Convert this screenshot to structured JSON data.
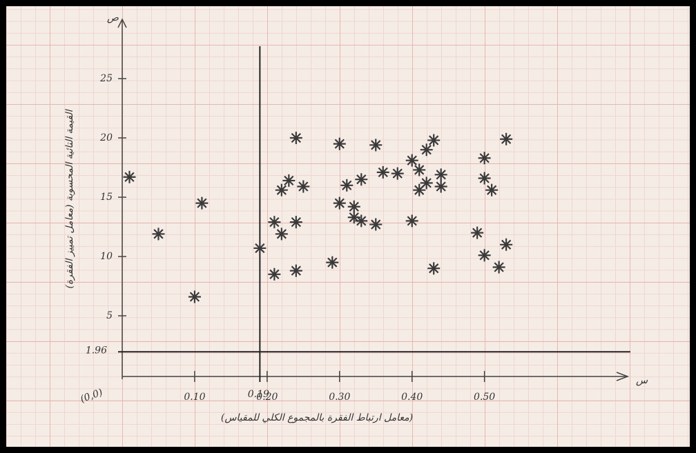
{
  "chart_data": {
    "type": "scatter",
    "x_label": "(معامل ارتباط الفقرة بالمجموع الكلي للمقياس)",
    "y_label": "القيمة التائية المحسوبة (معامل تمييز الفقرة)",
    "x_axis_letter": "س",
    "y_axis_letter": "ص",
    "origin_label": "(0,0)",
    "x": [
      0.01,
      0.05,
      0.11,
      0.1,
      0.19,
      0.21,
      0.21,
      0.22,
      0.22,
      0.23,
      0.24,
      0.25,
      0.24,
      0.24,
      0.29,
      0.3,
      0.31,
      0.3,
      0.33,
      0.32,
      0.32,
      0.33,
      0.35,
      0.35,
      0.36,
      0.38,
      0.4,
      0.4,
      0.41,
      0.41,
      0.42,
      0.42,
      0.43,
      0.44,
      0.44,
      0.43,
      0.49,
      0.5,
      0.5,
      0.51,
      0.5,
      0.52,
      0.53,
      0.53
    ],
    "values": [
      16.7,
      11.9,
      14.5,
      6.6,
      10.7,
      8.5,
      12.9,
      11.9,
      15.6,
      16.4,
      12.9,
      15.9,
      8.8,
      20.0,
      9.5,
      19.5,
      16.0,
      14.5,
      16.5,
      14.2,
      13.3,
      13.0,
      12.7,
      19.4,
      17.1,
      17.0,
      13.0,
      18.1,
      17.3,
      15.6,
      16.2,
      19.0,
      19.8,
      16.9,
      15.9,
      9.0,
      12.0,
      18.3,
      16.6,
      15.6,
      10.1,
      9.1,
      19.9,
      11.0
    ],
    "color": "#3a3a3a",
    "xlim": [
      0,
      0.69
    ],
    "ylim": [
      0,
      30
    ],
    "xticks": [
      {
        "value": 0.1,
        "label": "0.10"
      },
      {
        "value": 0.2,
        "label": "0.20"
      },
      {
        "value": 0.3,
        "label": "0.30"
      },
      {
        "value": 0.4,
        "label": "0.40"
      },
      {
        "value": 0.5,
        "label": "0.50"
      }
    ],
    "yticks": [
      5,
      10,
      15,
      20,
      25
    ],
    "x_reference": {
      "value": 0.19,
      "label": "0.19"
    },
    "y_reference": {
      "value": 1.96,
      "label": "1.96"
    }
  }
}
